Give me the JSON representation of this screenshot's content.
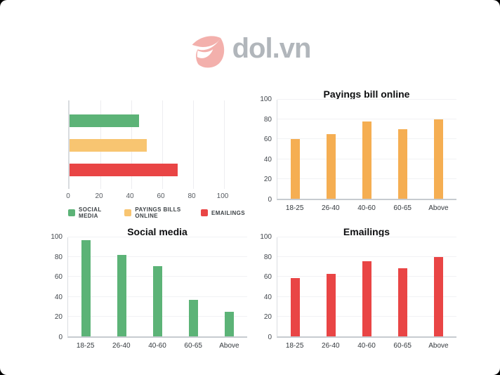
{
  "logo": {
    "text": "dol.vn"
  },
  "colors": {
    "green": "#5cb377",
    "yellow": "#f8c571",
    "orange": "#f5ae52",
    "red": "#e94545",
    "logo_pink": "#f3b0ac",
    "logo_gray": "#b1b6bb"
  },
  "chart_data": [
    {
      "id": "overview",
      "type": "bar-horizontal",
      "title": "",
      "xlim": [
        0,
        100
      ],
      "xticks": [
        0,
        20,
        40,
        60,
        80,
        100
      ],
      "grid": true,
      "legend_position": "bottom",
      "series": [
        {
          "name": "Social media",
          "value": 45,
          "color": "green"
        },
        {
          "name": "Payings bills online",
          "value": 50,
          "color": "yellow"
        },
        {
          "name": "Emailings",
          "value": 70,
          "color": "red"
        }
      ],
      "legend": [
        {
          "label": "SOCIAL MEDIA",
          "color": "green"
        },
        {
          "label": "PAYINGS BILLS ONLINE",
          "color": "yellow"
        },
        {
          "label": "EMAILINGS",
          "color": "red"
        }
      ]
    },
    {
      "id": "payings",
      "type": "bar",
      "title": "Payings bill online",
      "categories": [
        "18-25",
        "26-40",
        "40-60",
        "60-65",
        "Above"
      ],
      "values": [
        60,
        65,
        78,
        70,
        80
      ],
      "color": "orange",
      "ylim": [
        0,
        100
      ],
      "yticks": [
        0,
        20,
        40,
        60,
        80,
        100
      ],
      "grid": true
    },
    {
      "id": "social",
      "type": "bar",
      "title": "Social media",
      "categories": [
        "18-25",
        "26-40",
        "40-60",
        "60-65",
        "Above"
      ],
      "values": [
        97,
        82,
        71,
        37,
        25
      ],
      "color": "green",
      "ylim": [
        0,
        100
      ],
      "yticks": [
        0,
        20,
        40,
        60,
        80,
        100
      ],
      "grid": true
    },
    {
      "id": "emailings",
      "type": "bar",
      "title": "Emailings",
      "categories": [
        "18-25",
        "26-40",
        "40-60",
        "60-65",
        "Above"
      ],
      "values": [
        59,
        63,
        76,
        69,
        80
      ],
      "color": "red",
      "ylim": [
        0,
        100
      ],
      "yticks": [
        0,
        20,
        40,
        60,
        80,
        100
      ],
      "grid": true
    }
  ]
}
